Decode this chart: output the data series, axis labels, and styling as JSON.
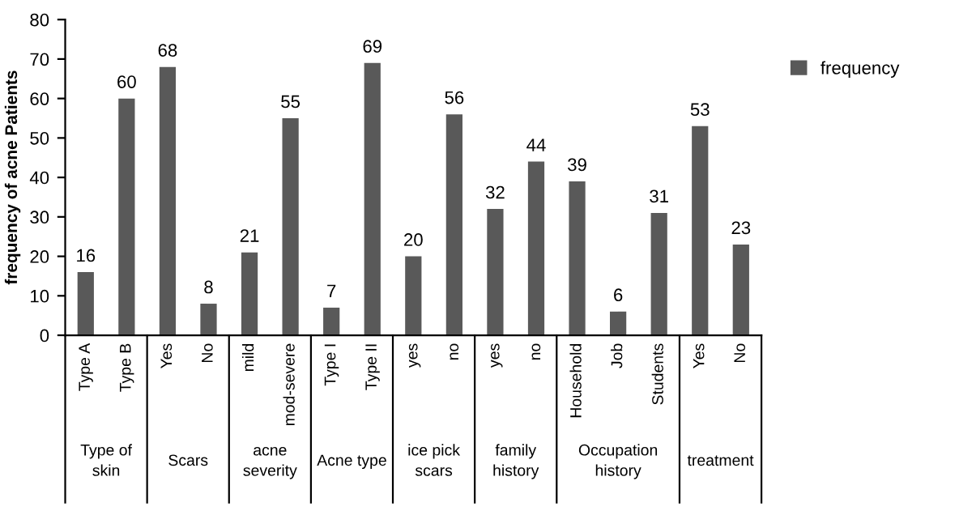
{
  "chart_data": {
    "type": "bar",
    "ylabel": "frequency of acne Patients",
    "categories": [
      "Type A",
      "Type B",
      "Yes",
      "No",
      "mild",
      "mod-severe",
      "Type I",
      "Type II",
      "yes",
      "no",
      "yes",
      "no",
      "Household",
      "Job",
      "Students",
      "Yes",
      "No"
    ],
    "series": [
      {
        "name": "frequency",
        "color": "#595959",
        "values": [
          16,
          60,
          68,
          8,
          21,
          55,
          7,
          69,
          20,
          56,
          32,
          44,
          39,
          6,
          31,
          53,
          23
        ]
      }
    ],
    "annotations": [
      "Type of skin",
      "Scars",
      "acne severity",
      "Acne type",
      "ice pick scars",
      "family history",
      "Occupation history",
      "treatment"
    ],
    "ylim": [
      0,
      80
    ],
    "yticks": [
      0,
      10,
      20,
      30,
      40,
      50,
      60,
      70,
      80
    ],
    "data_labels": true,
    "legend": "top right",
    "grid": false
  }
}
